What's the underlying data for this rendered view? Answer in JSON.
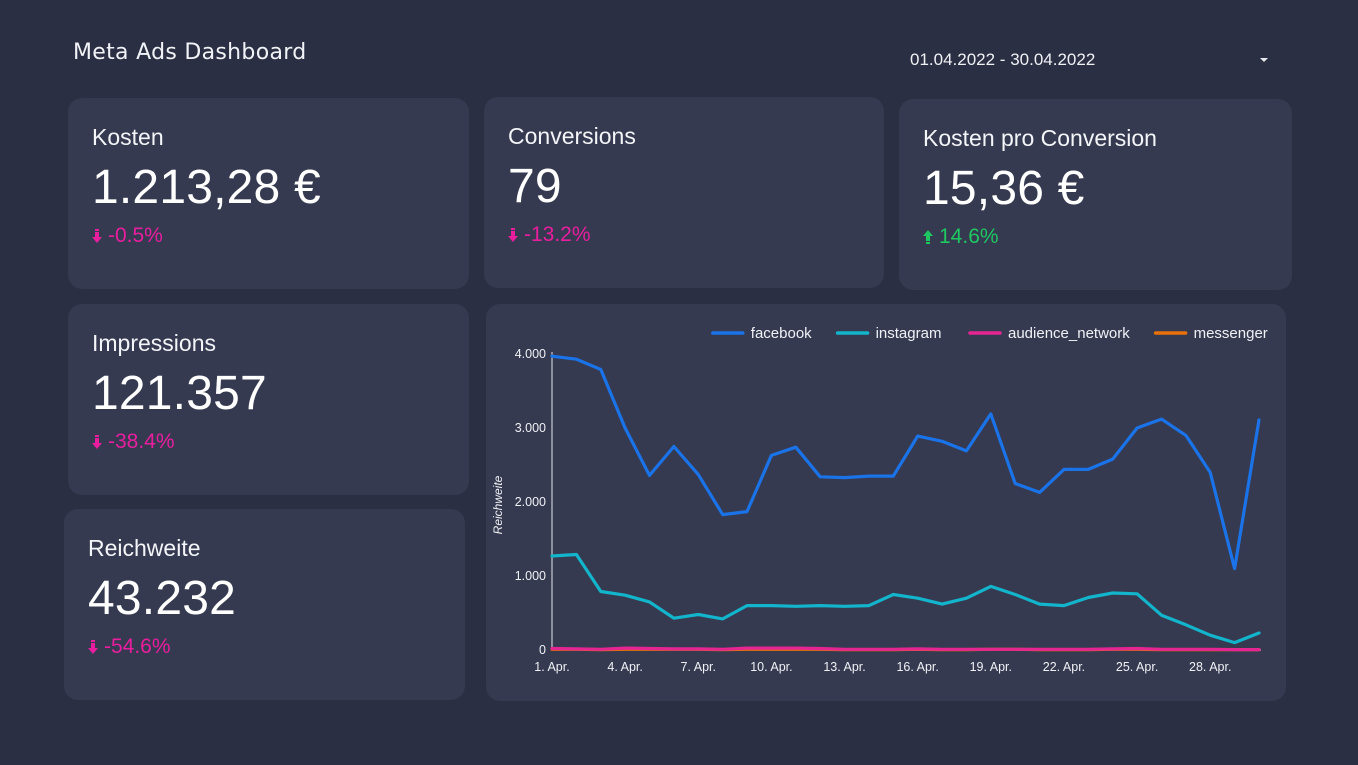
{
  "header": {
    "title": "Meta Ads Dashboard",
    "date_range": "01.04.2022 - 30.04.2022"
  },
  "colors": {
    "background": "#2a2f43",
    "card": "#353a50",
    "negative": "#e91e9e",
    "positive": "#1ec760"
  },
  "kpis": {
    "kosten": {
      "label": "Kosten",
      "value": "1.213,28 €",
      "delta": "-0.5%",
      "direction": "down"
    },
    "conversions": {
      "label": "Conversions",
      "value": "79",
      "delta": "-13.2%",
      "direction": "down"
    },
    "kpc": {
      "label": "Kosten pro Conversion",
      "value": "15,36 €",
      "delta": "14.6%",
      "direction": "up"
    },
    "impressions": {
      "label": "Impressions",
      "value": "121.357",
      "delta": "-38.4%",
      "direction": "down"
    },
    "reichweite": {
      "label": "Reichweite",
      "value": "43.232",
      "delta": "-54.6%",
      "direction": "down"
    }
  },
  "chart_data": {
    "type": "line",
    "title": "",
    "xlabel": "",
    "ylabel": "Reichweite",
    "x": [
      "1. Apr.",
      "2. Apr.",
      "3. Apr.",
      "4. Apr.",
      "5. Apr.",
      "6. Apr.",
      "7. Apr.",
      "8. Apr.",
      "9. Apr.",
      "10. Apr.",
      "11. Apr.",
      "12. Apr.",
      "13. Apr.",
      "14. Apr.",
      "15. Apr.",
      "16. Apr.",
      "17. Apr.",
      "18. Apr.",
      "19. Apr.",
      "20. Apr.",
      "21. Apr.",
      "22. Apr.",
      "23. Apr.",
      "24. Apr.",
      "25. Apr.",
      "26. Apr.",
      "27. Apr.",
      "28. Apr.",
      "29. Apr.",
      "30. Apr."
    ],
    "x_tick_labels": [
      "1. Apr.",
      "4. Apr.",
      "7. Apr.",
      "10. Apr.",
      "13. Apr.",
      "16. Apr.",
      "19. Apr.",
      "22. Apr.",
      "25. Apr.",
      "28. Apr."
    ],
    "ylim": [
      0,
      4000
    ],
    "y_ticks": [
      0,
      1000,
      2000,
      3000,
      4000
    ],
    "y_tick_labels": [
      "0",
      "1.000",
      "2.000",
      "3.000",
      "4.000"
    ],
    "grid": false,
    "legend": "top-right",
    "series": [
      {
        "name": "facebook",
        "color": "#1a73e8",
        "values": [
          3970,
          3930,
          3790,
          3000,
          2360,
          2750,
          2370,
          1830,
          1870,
          2630,
          2740,
          2340,
          2330,
          2350,
          2350,
          2890,
          2820,
          2690,
          3190,
          2250,
          2130,
          2440,
          2440,
          2580,
          3000,
          3120,
          2900,
          2400,
          1100,
          3110
        ]
      },
      {
        "name": "instagram",
        "color": "#12b5cb",
        "values": [
          1270,
          1290,
          790,
          740,
          650,
          430,
          480,
          420,
          600,
          600,
          590,
          600,
          590,
          600,
          750,
          700,
          620,
          700,
          860,
          750,
          620,
          600,
          710,
          770,
          760,
          470,
          340,
          200,
          100,
          230
        ]
      },
      {
        "name": "audience_network",
        "color": "#e52592",
        "values": [
          20,
          15,
          10,
          25,
          20,
          15,
          15,
          10,
          25,
          25,
          25,
          20,
          10,
          10,
          10,
          15,
          10,
          10,
          10,
          10,
          10,
          10,
          10,
          15,
          20,
          10,
          10,
          10,
          5,
          5
        ]
      },
      {
        "name": "messenger",
        "color": "#e8710a",
        "values": [
          10,
          10,
          5,
          10,
          10,
          10,
          10,
          5,
          10,
          10,
          10,
          10,
          5,
          5,
          5,
          10,
          5,
          5,
          10,
          10,
          5,
          5,
          5,
          10,
          10,
          5,
          5,
          5,
          5,
          5
        ]
      }
    ]
  }
}
